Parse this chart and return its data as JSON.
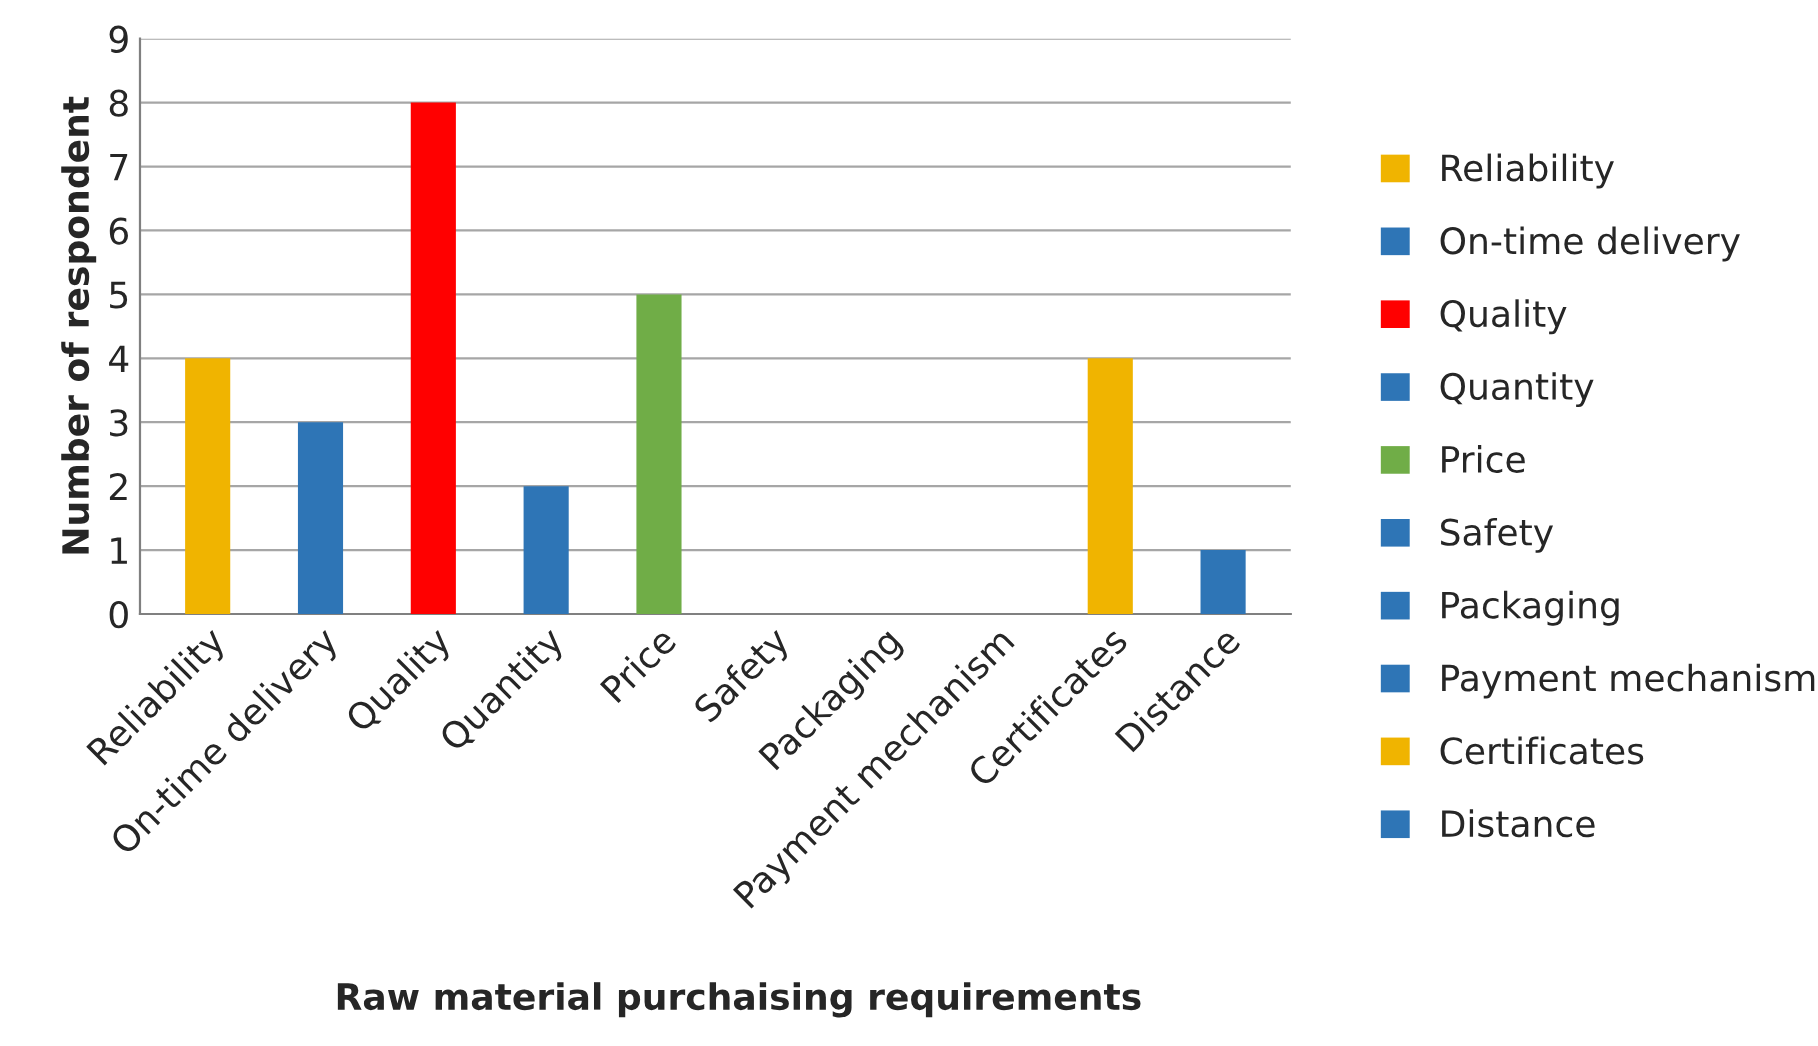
{
  "chart_data": {
    "type": "bar",
    "xlabel": "Raw material purchaising requirements",
    "ylabel": "Number of respondent",
    "categories": [
      "Reliability",
      "On-time delivery",
      "Quality",
      "Quantity",
      "Price",
      "Safety",
      "Packaging",
      "Payment mechanism",
      "Certificates",
      "Distance"
    ],
    "series": [
      {
        "name": "Reliability",
        "color": "#f0b400",
        "values": [
          4,
          null,
          null,
          null,
          null,
          null,
          null,
          null,
          null,
          null
        ]
      },
      {
        "name": "On-time delivery",
        "color": "#2e75b6",
        "values": [
          null,
          3,
          null,
          null,
          null,
          null,
          null,
          null,
          null,
          null
        ]
      },
      {
        "name": "Quality",
        "color": "#ff0000",
        "values": [
          null,
          null,
          8,
          null,
          null,
          null,
          null,
          null,
          null,
          null
        ]
      },
      {
        "name": "Quantity",
        "color": "#2e75b6",
        "values": [
          null,
          null,
          null,
          2,
          null,
          null,
          null,
          null,
          null,
          null
        ]
      },
      {
        "name": "Price",
        "color": "#70ad47",
        "values": [
          null,
          null,
          null,
          null,
          5,
          null,
          null,
          null,
          null,
          null
        ]
      },
      {
        "name": "Safety",
        "color": "#2e75b6",
        "values": [
          null,
          null,
          null,
          null,
          null,
          0,
          null,
          null,
          null,
          null
        ]
      },
      {
        "name": "Packaging",
        "color": "#2e75b6",
        "values": [
          null,
          null,
          null,
          null,
          null,
          null,
          0,
          null,
          null,
          null
        ]
      },
      {
        "name": "Payment mechanism",
        "color": "#2e75b6",
        "values": [
          null,
          null,
          null,
          null,
          null,
          null,
          null,
          0,
          null,
          null
        ]
      },
      {
        "name": "Certificates",
        "color": "#f0b400",
        "values": [
          null,
          null,
          null,
          null,
          null,
          null,
          null,
          null,
          4,
          null
        ]
      },
      {
        "name": "Distance",
        "color": "#2e75b6",
        "values": [
          null,
          null,
          null,
          null,
          null,
          null,
          null,
          null,
          null,
          1
        ]
      }
    ],
    "ylim": [
      0,
      9
    ],
    "yticks": [
      0,
      1,
      2,
      3,
      4,
      5,
      6,
      7,
      8,
      9
    ],
    "grid": "y",
    "legend": "right"
  }
}
